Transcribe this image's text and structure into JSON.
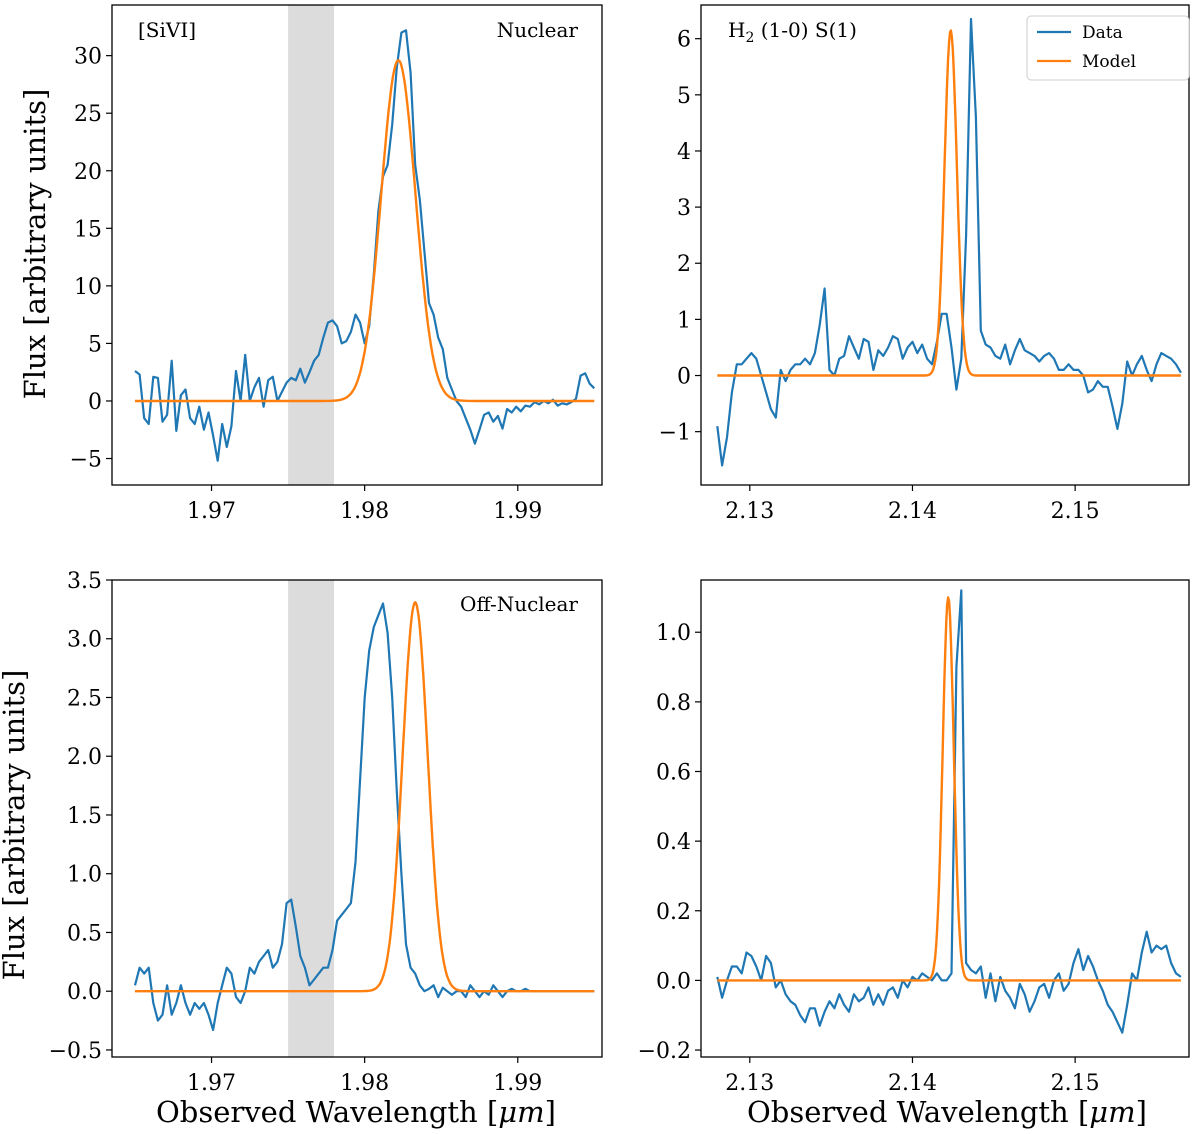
{
  "figure": {
    "ylabel": "Flux [arbitrary units]",
    "xlabel_prefix": "Observed Wavelength [",
    "xlabel_unit": "μm",
    "xlabel_suffix": "]",
    "legend": {
      "data_label": "Data",
      "model_label": "Model"
    },
    "colors": {
      "data": "#1f77b4",
      "model": "#ff7f0e",
      "masked_band": "#dcdcdc"
    }
  },
  "chart_data": [
    {
      "id": "nuclear-sivi",
      "type": "line",
      "annotation_left": "[SiVI]",
      "annotation_right": "Nuclear",
      "xlim": [
        1.9635,
        1.9955
      ],
      "ylim": [
        -7.3,
        34.4
      ],
      "xticks": [
        1.97,
        1.98,
        1.99
      ],
      "xtick_labels": [
        "1.97",
        "1.98",
        "1.99"
      ],
      "yticks": [
        -5,
        0,
        5,
        10,
        15,
        20,
        25,
        30
      ],
      "ytick_labels": [
        "−5",
        "0",
        "5",
        "10",
        "15",
        "20",
        "25",
        "30"
      ],
      "shaded_band": [
        1.975,
        1.978
      ],
      "model": {
        "peak": 29.6,
        "center": 1.9822,
        "sigma": 0.00112
      },
      "series": [
        {
          "name": "Data",
          "x": [
            1.965,
            1.9653,
            1.9656,
            1.9659,
            1.9662,
            1.9665,
            1.9668,
            1.9671,
            1.9674,
            1.9677,
            1.968,
            1.9683,
            1.9686,
            1.9689,
            1.9692,
            1.9695,
            1.9698,
            1.9701,
            1.9704,
            1.9707,
            1.971,
            1.9713,
            1.9716,
            1.9719,
            1.9722,
            1.9725,
            1.9728,
            1.9731,
            1.9734,
            1.9737,
            1.974,
            1.9743,
            1.9746,
            1.9749,
            1.9752,
            1.9755,
            1.9758,
            1.9761,
            1.9764,
            1.9767,
            1.977,
            1.9773,
            1.9776,
            1.9779,
            1.9782,
            1.9785,
            1.9788,
            1.9791,
            1.9794,
            1.9797,
            1.98,
            1.9803,
            1.9806,
            1.9809,
            1.9812,
            1.9815,
            1.9818,
            1.9821,
            1.9824,
            1.9827,
            1.983,
            1.9833,
            1.9836,
            1.9839,
            1.9842,
            1.9845,
            1.9848,
            1.9851,
            1.9854,
            1.9857,
            1.986,
            1.9863,
            1.9866,
            1.9869,
            1.9872,
            1.9875,
            1.9878,
            1.9881,
            1.9884,
            1.9887,
            1.989,
            1.9893,
            1.9896,
            1.9899,
            1.9902,
            1.9905,
            1.9908,
            1.9911,
            1.9914,
            1.9917,
            1.992,
            1.9923,
            1.9926,
            1.9929,
            1.9932,
            1.9935,
            1.9938,
            1.9941,
            1.9944,
            1.9947,
            1.995
          ],
          "y": [
            2.6,
            2.3,
            -1.5,
            -2.0,
            2.1,
            2.0,
            -1.8,
            -1.2,
            3.5,
            -2.6,
            0.5,
            1.0,
            -1.5,
            -2.0,
            -0.5,
            -2.5,
            -1.0,
            -3.0,
            -5.2,
            -2.0,
            -4.0,
            -2.2,
            2.6,
            0.0,
            4.0,
            0.0,
            1.2,
            2.0,
            -0.5,
            1.8,
            2.1,
            0.0,
            0.8,
            1.6,
            2.0,
            1.8,
            2.8,
            1.6,
            2.5,
            3.5,
            4.0,
            5.5,
            6.8,
            7.0,
            6.5,
            5.0,
            5.2,
            6.0,
            7.5,
            6.8,
            5.0,
            6.5,
            11.0,
            16.5,
            19.5,
            20.5,
            24.0,
            29.0,
            32.0,
            32.2,
            28.5,
            20.5,
            17.5,
            13.0,
            8.5,
            7.5,
            5.5,
            4.5,
            2.0,
            1.0,
            0.0,
            -0.5,
            -1.5,
            -2.5,
            -3.7,
            -2.5,
            -1.2,
            -1.0,
            -1.8,
            -1.3,
            -2.4,
            -0.7,
            -1.0,
            -0.5,
            -0.9,
            -0.4,
            -0.5,
            -0.1,
            -0.3,
            0.0,
            -0.2,
            0.1,
            -0.4,
            -0.2,
            -0.3,
            -0.1,
            0.2,
            2.2,
            2.4,
            1.5,
            1.1
          ]
        },
        {
          "name": "Model"
        }
      ]
    },
    {
      "id": "nuclear-h2",
      "type": "line",
      "annotation_left_main": "H",
      "annotation_left_sub": "2",
      "annotation_left_rest": " (1-0) S(1)",
      "xlim": [
        2.127,
        2.157
      ],
      "ylim": [
        -1.95,
        6.6
      ],
      "xticks": [
        2.13,
        2.14,
        2.15
      ],
      "xtick_labels": [
        "2.13",
        "2.14",
        "2.15"
      ],
      "yticks": [
        -1,
        0,
        1,
        2,
        3,
        4,
        5,
        6
      ],
      "ytick_labels": [
        "−1",
        "0",
        "1",
        "2",
        "3",
        "4",
        "5",
        "6"
      ],
      "model": {
        "peak": 6.15,
        "center": 2.14235,
        "sigma": 0.00038
      },
      "series": [
        {
          "name": "Data",
          "x": [
            2.128,
            2.1283,
            2.1286,
            2.1289,
            2.1292,
            2.1295,
            2.1298,
            2.1301,
            2.1304,
            2.1307,
            2.131,
            2.1313,
            2.1316,
            2.1319,
            2.1322,
            2.1325,
            2.1328,
            2.1331,
            2.1334,
            2.1337,
            2.134,
            2.1343,
            2.1346,
            2.1349,
            2.1352,
            2.1355,
            2.1358,
            2.1361,
            2.1364,
            2.1367,
            2.137,
            2.1373,
            2.1376,
            2.1379,
            2.1382,
            2.1385,
            2.1388,
            2.1391,
            2.1394,
            2.1397,
            2.14,
            2.1403,
            2.1406,
            2.1409,
            2.1412,
            2.1415,
            2.1418,
            2.1421,
            2.1424,
            2.1427,
            2.143,
            2.1433,
            2.1436,
            2.1439,
            2.1442,
            2.1445,
            2.1448,
            2.1451,
            2.1454,
            2.1457,
            2.146,
            2.1463,
            2.1466,
            2.1469,
            2.1472,
            2.1475,
            2.1478,
            2.1481,
            2.1484,
            2.1487,
            2.149,
            2.1493,
            2.1496,
            2.1499,
            2.1502,
            2.1505,
            2.1508,
            2.1511,
            2.1514,
            2.1517,
            2.152,
            2.1523,
            2.1526,
            2.1529,
            2.1532,
            2.1535,
            2.1538,
            2.1541,
            2.1544,
            2.1547,
            2.155,
            2.1553,
            2.1556,
            2.1559,
            2.1562,
            2.1565
          ],
          "y": [
            -0.9,
            -1.6,
            -1.1,
            -0.3,
            0.2,
            0.2,
            0.3,
            0.4,
            0.3,
            0.0,
            -0.3,
            -0.6,
            -0.75,
            0.1,
            -0.1,
            0.1,
            0.2,
            0.2,
            0.3,
            0.2,
            0.4,
            0.9,
            1.55,
            0.1,
            0.0,
            0.3,
            0.35,
            0.7,
            0.5,
            0.3,
            0.65,
            0.6,
            0.1,
            0.45,
            0.35,
            0.5,
            0.7,
            0.65,
            0.3,
            0.5,
            0.6,
            0.4,
            0.55,
            0.3,
            0.2,
            0.6,
            1.1,
            1.1,
            0.5,
            -0.25,
            0.3,
            2.5,
            6.35,
            4.6,
            0.8,
            0.55,
            0.5,
            0.35,
            0.3,
            0.55,
            0.2,
            0.45,
            0.65,
            0.45,
            0.4,
            0.35,
            0.25,
            0.35,
            0.4,
            0.3,
            0.1,
            0.1,
            0.2,
            0.1,
            0.1,
            0.0,
            -0.3,
            -0.25,
            -0.1,
            -0.2,
            -0.2,
            -0.55,
            -0.95,
            -0.5,
            0.25,
            0.0,
            0.2,
            0.35,
            0.1,
            -0.1,
            0.2,
            0.4,
            0.35,
            0.3,
            0.2,
            0.05
          ]
        },
        {
          "name": "Model"
        }
      ]
    },
    {
      "id": "offnuclear-sivi",
      "type": "line",
      "annotation_right": "Off-Nuclear",
      "xlim": [
        1.9635,
        1.9955
      ],
      "ylim": [
        -0.56,
        3.5
      ],
      "xticks": [
        1.97,
        1.98,
        1.99
      ],
      "xtick_labels": [
        "1.97",
        "1.98",
        "1.99"
      ],
      "yticks": [
        -0.5,
        0.0,
        0.5,
        1.0,
        1.5,
        2.0,
        2.5,
        3.0,
        3.5
      ],
      "ytick_labels": [
        "−0.5",
        "0.0",
        "0.5",
        "1.0",
        "1.5",
        "2.0",
        "2.5",
        "3.0",
        "3.5"
      ],
      "shaded_band": [
        1.975,
        1.978
      ],
      "model": {
        "peak": 3.31,
        "center": 1.9833,
        "sigma": 0.00082
      },
      "series": [
        {
          "name": "Data",
          "x": [
            1.965,
            1.9653,
            1.9656,
            1.9659,
            1.9662,
            1.9665,
            1.9668,
            1.9671,
            1.9674,
            1.9677,
            1.968,
            1.9683,
            1.9686,
            1.9689,
            1.9692,
            1.9695,
            1.9698,
            1.9701,
            1.9704,
            1.9707,
            1.971,
            1.9713,
            1.9716,
            1.9719,
            1.9722,
            1.9725,
            1.9728,
            1.9731,
            1.9734,
            1.9737,
            1.974,
            1.9743,
            1.9746,
            1.9749,
            1.9752,
            1.9755,
            1.9758,
            1.9761,
            1.9764,
            1.9767,
            1.977,
            1.9773,
            1.9776,
            1.9779,
            1.9782,
            1.9785,
            1.9788,
            1.9791,
            1.9794,
            1.9797,
            1.98,
            1.9803,
            1.9806,
            1.9809,
            1.9812,
            1.9815,
            1.9818,
            1.9821,
            1.9824,
            1.9827,
            1.983,
            1.9833,
            1.9836,
            1.9839,
            1.9842,
            1.9845,
            1.9848,
            1.9851,
            1.9854,
            1.9857,
            1.986,
            1.9863,
            1.9866,
            1.9869,
            1.9872,
            1.9875,
            1.9878,
            1.9881,
            1.9884,
            1.9887,
            1.989,
            1.9893,
            1.9896,
            1.9899,
            1.9902,
            1.9905,
            1.9908,
            1.9911,
            1.9914,
            1.9917,
            1.992,
            1.9923,
            1.9926,
            1.9929,
            1.9932,
            1.9935,
            1.9938,
            1.9941,
            1.9944,
            1.9947,
            1.995
          ],
          "y": [
            0.05,
            0.2,
            0.15,
            0.2,
            -0.1,
            -0.25,
            -0.2,
            0.05,
            -0.2,
            -0.1,
            0.05,
            -0.1,
            -0.2,
            -0.1,
            -0.15,
            -0.1,
            -0.2,
            -0.33,
            -0.1,
            0.05,
            0.2,
            0.15,
            -0.05,
            -0.1,
            0.0,
            0.2,
            0.15,
            0.25,
            0.3,
            0.35,
            0.2,
            0.25,
            0.4,
            0.75,
            0.78,
            0.55,
            0.3,
            0.2,
            0.05,
            0.1,
            0.15,
            0.2,
            0.2,
            0.35,
            0.6,
            0.65,
            0.7,
            0.75,
            1.1,
            1.8,
            2.5,
            2.9,
            3.1,
            3.2,
            3.3,
            3.05,
            2.5,
            1.7,
            1.0,
            0.4,
            0.2,
            0.15,
            0.05,
            0.0,
            0.02,
            0.05,
            -0.05,
            0.03,
            0.0,
            -0.03,
            0.0,
            0.0,
            -0.05,
            0.05,
            0.0,
            -0.05,
            0.0,
            -0.03,
            0.05,
            0.0,
            -0.05,
            0.0,
            0.02,
            0.0,
            0.0,
            0.02,
            0.0,
            0.0,
            0.0,
            0.0,
            0.0,
            0.0,
            0.0,
            0.0,
            0.0,
            0.0,
            0.0,
            0.0,
            0.0,
            0.0,
            0.0
          ]
        },
        {
          "name": "Model"
        }
      ]
    },
    {
      "id": "offnuclear-h2",
      "type": "line",
      "xlim": [
        2.127,
        2.157
      ],
      "ylim": [
        -0.22,
        1.15
      ],
      "xticks": [
        2.13,
        2.14,
        2.15
      ],
      "xtick_labels": [
        "2.13",
        "2.14",
        "2.15"
      ],
      "yticks": [
        -0.2,
        0.0,
        0.2,
        0.4,
        0.6,
        0.8,
        1.0
      ],
      "ytick_labels": [
        "−0.2",
        "0.0",
        "0.2",
        "0.4",
        "0.6",
        "0.8",
        "1.0"
      ],
      "model": {
        "peak": 1.1,
        "center": 2.1422,
        "sigma": 0.00034
      },
      "series": [
        {
          "name": "Data",
          "x": [
            2.128,
            2.1283,
            2.1286,
            2.1289,
            2.1292,
            2.1295,
            2.1298,
            2.1301,
            2.1304,
            2.1307,
            2.131,
            2.1313,
            2.1316,
            2.1319,
            2.1322,
            2.1325,
            2.1328,
            2.1331,
            2.1334,
            2.1337,
            2.134,
            2.1343,
            2.1346,
            2.1349,
            2.1352,
            2.1355,
            2.1358,
            2.1361,
            2.1364,
            2.1367,
            2.137,
            2.1373,
            2.1376,
            2.1379,
            2.1382,
            2.1385,
            2.1388,
            2.1391,
            2.1394,
            2.1397,
            2.14,
            2.1403,
            2.1406,
            2.1409,
            2.1412,
            2.1415,
            2.1418,
            2.1421,
            2.1424,
            2.1427,
            2.143,
            2.1433,
            2.1436,
            2.1439,
            2.1442,
            2.1445,
            2.1448,
            2.1451,
            2.1454,
            2.1457,
            2.146,
            2.1463,
            2.1466,
            2.1469,
            2.1472,
            2.1475,
            2.1478,
            2.1481,
            2.1484,
            2.1487,
            2.149,
            2.1493,
            2.1496,
            2.1499,
            2.1502,
            2.1505,
            2.1508,
            2.1511,
            2.1514,
            2.1517,
            2.152,
            2.1523,
            2.1526,
            2.1529,
            2.1532,
            2.1535,
            2.1538,
            2.1541,
            2.1544,
            2.1547,
            2.155,
            2.1553,
            2.1556,
            2.1559,
            2.1562,
            2.1565
          ],
          "y": [
            0.01,
            -0.05,
            0.0,
            0.04,
            0.04,
            0.02,
            0.08,
            0.07,
            0.04,
            0.0,
            0.07,
            0.05,
            -0.02,
            0.0,
            -0.04,
            -0.06,
            -0.07,
            -0.1,
            -0.12,
            -0.08,
            -0.08,
            -0.13,
            -0.09,
            -0.06,
            -0.08,
            -0.04,
            -0.07,
            -0.09,
            -0.04,
            -0.06,
            -0.05,
            -0.02,
            -0.07,
            -0.04,
            -0.07,
            -0.03,
            -0.02,
            -0.05,
            0.0,
            -0.02,
            0.01,
            0.0,
            0.02,
            0.01,
            0.0,
            0.02,
            0.0,
            0.0,
            0.02,
            0.9,
            1.12,
            0.05,
            0.03,
            0.02,
            0.04,
            -0.05,
            0.02,
            -0.06,
            0.01,
            -0.03,
            -0.05,
            -0.08,
            -0.01,
            -0.04,
            -0.09,
            -0.06,
            -0.02,
            -0.01,
            -0.05,
            0.0,
            0.02,
            -0.03,
            -0.01,
            0.05,
            0.09,
            0.03,
            0.07,
            0.04,
            0.0,
            -0.03,
            -0.07,
            -0.09,
            -0.12,
            -0.15,
            -0.07,
            0.02,
            0.0,
            0.08,
            0.14,
            0.08,
            0.1,
            0.09,
            0.1,
            0.05,
            0.02,
            0.01
          ]
        },
        {
          "name": "Model"
        }
      ]
    }
  ]
}
